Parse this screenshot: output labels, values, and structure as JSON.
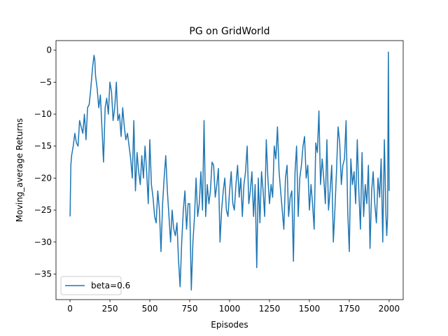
{
  "chart_data": {
    "type": "line",
    "title": "PG on GridWorld",
    "xlabel": "Episodes",
    "ylabel": "Moving_average Returns",
    "xlim": [
      -88,
      2088
    ],
    "ylim": [
      -39,
      1.5
    ],
    "xticks": [
      0,
      250,
      500,
      750,
      1000,
      1250,
      1500,
      1750,
      2000
    ],
    "xtick_labels": [
      "0",
      "250",
      "500",
      "750",
      "1000",
      "1250",
      "1500",
      "1750",
      "2000"
    ],
    "yticks": [
      0,
      -5,
      -10,
      -15,
      -20,
      -25,
      -30,
      -35
    ],
    "ytick_labels": [
      "0",
      "−5",
      "−10",
      "−15",
      "−20",
      "−25",
      "−30",
      "−35"
    ],
    "grid": false,
    "legend": {
      "position": "lower-left",
      "entries": [
        "beta=0.6"
      ]
    },
    "colors": {
      "series": "#1f77b4"
    },
    "series": [
      {
        "name": "beta=0.6",
        "x": [
          0,
          5,
          10,
          20,
          30,
          40,
          50,
          60,
          70,
          80,
          90,
          100,
          110,
          120,
          130,
          140,
          150,
          155,
          160,
          170,
          180,
          190,
          200,
          210,
          220,
          230,
          240,
          250,
          260,
          270,
          280,
          290,
          300,
          310,
          320,
          330,
          340,
          350,
          360,
          370,
          380,
          390,
          400,
          410,
          420,
          430,
          440,
          450,
          460,
          470,
          480,
          490,
          500,
          510,
          520,
          530,
          540,
          550,
          560,
          570,
          580,
          590,
          600,
          610,
          620,
          630,
          640,
          650,
          660,
          670,
          680,
          690,
          700,
          710,
          720,
          730,
          740,
          750,
          760,
          770,
          780,
          790,
          800,
          810,
          820,
          830,
          840,
          850,
          860,
          870,
          880,
          890,
          900,
          910,
          920,
          930,
          940,
          950,
          960,
          970,
          980,
          990,
          1000,
          1010,
          1020,
          1030,
          1040,
          1050,
          1060,
          1070,
          1080,
          1090,
          1100,
          1110,
          1120,
          1130,
          1140,
          1150,
          1160,
          1170,
          1180,
          1190,
          1200,
          1210,
          1220,
          1230,
          1240,
          1250,
          1260,
          1270,
          1280,
          1290,
          1300,
          1310,
          1320,
          1330,
          1340,
          1350,
          1360,
          1370,
          1380,
          1390,
          1400,
          1410,
          1420,
          1430,
          1440,
          1450,
          1460,
          1470,
          1480,
          1490,
          1500,
          1510,
          1520,
          1530,
          1540,
          1550,
          1560,
          1570,
          1580,
          1590,
          1600,
          1610,
          1620,
          1630,
          1640,
          1650,
          1660,
          1670,
          1680,
          1690,
          1700,
          1710,
          1720,
          1730,
          1740,
          1750,
          1760,
          1770,
          1780,
          1790,
          1800,
          1810,
          1820,
          1830,
          1840,
          1850,
          1860,
          1870,
          1880,
          1890,
          1900,
          1910,
          1920,
          1930,
          1940,
          1950,
          1960,
          1970,
          1980,
          1985,
          1990,
          1995,
          2000
        ],
        "values": [
          -26,
          -18,
          -16.5,
          -15,
          -13,
          -14.5,
          -15,
          -11,
          -12,
          -13,
          -10,
          -14,
          -9,
          -8.5,
          -6,
          -3,
          -0.8,
          -1.5,
          -4,
          -6,
          -9,
          -7,
          -12,
          -17.5,
          -9,
          -7.5,
          -10,
          -5,
          -6.5,
          -11,
          -9,
          -5,
          -11,
          -10,
          -13.5,
          -9,
          -12,
          -14,
          -13,
          -15,
          -17,
          -20,
          -11,
          -22,
          -16,
          -19,
          -21,
          -16.5,
          -20,
          -15,
          -19,
          -24,
          -14,
          -21,
          -23,
          -26,
          -27,
          -22,
          -25,
          -31.5,
          -24,
          -20,
          -16.5,
          -22,
          -26,
          -30,
          -25,
          -28,
          -29,
          -27,
          -33,
          -37,
          -30,
          -25,
          -22,
          -28,
          -24,
          -24,
          -37.5,
          -30,
          -26,
          -20,
          -26,
          -24,
          -19,
          -25,
          -11,
          -26,
          -21,
          -24,
          -22,
          -17.5,
          -18,
          -23,
          -21,
          -18.5,
          -30,
          -25,
          -22,
          -20,
          -25,
          -26,
          -22,
          -19,
          -24,
          -25,
          -21,
          -18,
          -23,
          -20,
          -26,
          -21,
          -19,
          -15,
          -24,
          -22,
          -19,
          -26,
          -21,
          -34,
          -20,
          -27,
          -19,
          -22,
          -26,
          -14,
          -20,
          -24,
          -21,
          -23,
          -15,
          -17,
          -12,
          -19,
          -22,
          -25,
          -28,
          -20,
          -18,
          -26,
          -23,
          -22,
          -33,
          -19,
          -15,
          -26,
          -20,
          -18,
          -15,
          -13.5,
          -20,
          -18,
          -25,
          -21,
          -24,
          -28,
          -14.5,
          -16,
          -9.5,
          -21,
          -17,
          -20,
          -24,
          -14,
          -25,
          -22,
          -18,
          -30,
          -25,
          -19,
          -12,
          -14.5,
          -21,
          -18,
          -17,
          -11,
          -25,
          -31.5,
          -17,
          -21,
          -19,
          -24,
          -14,
          -22,
          -28,
          -16,
          -26,
          -21,
          -24,
          -18,
          -31,
          -22,
          -19,
          -24,
          -27,
          -20,
          -23,
          -17,
          -30,
          -14,
          -26,
          -29,
          -26,
          -0.3,
          -22
        ]
      }
    ]
  }
}
